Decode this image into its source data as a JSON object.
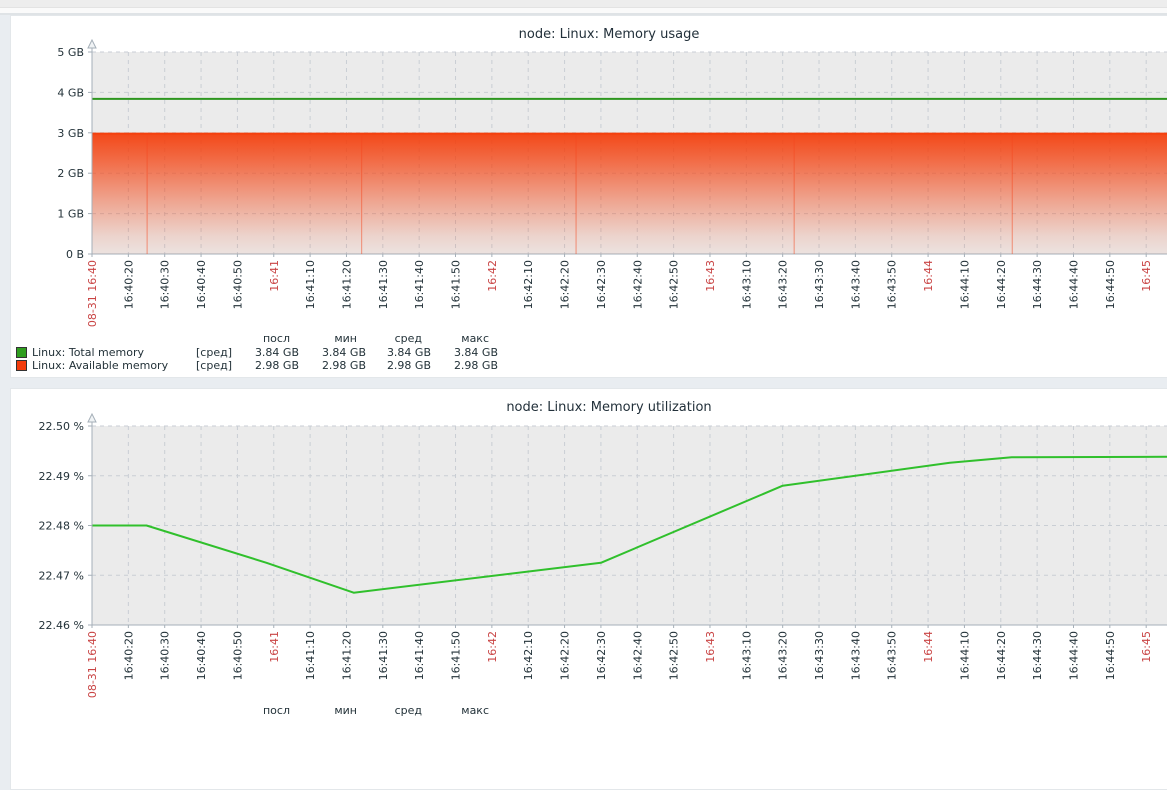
{
  "page": {
    "topbar_color": "#ededed",
    "secondbar_color": "#fafafa",
    "divider_color": "#dfe3e6",
    "background": "#e9edf1",
    "card_background": "#ffffff",
    "plot_background": "#ebebeb",
    "grid_color": "#c9ced4",
    "axis_color": "#a5afb8",
    "label_color": "#233239",
    "red_label_color": "#c94444"
  },
  "time_axis": {
    "span_s": 296,
    "ticks": [
      {
        "s": 0,
        "label": "08-31 16:40",
        "red": true
      },
      {
        "s": 10,
        "label": "16:40:20",
        "red": false
      },
      {
        "s": 20,
        "label": "16:40:30",
        "red": false
      },
      {
        "s": 30,
        "label": "16:40:40",
        "red": false
      },
      {
        "s": 40,
        "label": "16:40:50",
        "red": false
      },
      {
        "s": 50,
        "label": "16:41",
        "red": true
      },
      {
        "s": 60,
        "label": "16:41:10",
        "red": false
      },
      {
        "s": 70,
        "label": "16:41:20",
        "red": false
      },
      {
        "s": 80,
        "label": "16:41:30",
        "red": false
      },
      {
        "s": 90,
        "label": "16:41:40",
        "red": false
      },
      {
        "s": 100,
        "label": "16:41:50",
        "red": false
      },
      {
        "s": 110,
        "label": "16:42",
        "red": true
      },
      {
        "s": 120,
        "label": "16:42:10",
        "red": false
      },
      {
        "s": 130,
        "label": "16:42:20",
        "red": false
      },
      {
        "s": 140,
        "label": "16:42:30",
        "red": false
      },
      {
        "s": 150,
        "label": "16:42:40",
        "red": false
      },
      {
        "s": 160,
        "label": "16:42:50",
        "red": false
      },
      {
        "s": 170,
        "label": "16:43",
        "red": true
      },
      {
        "s": 180,
        "label": "16:43:10",
        "red": false
      },
      {
        "s": 190,
        "label": "16:43:20",
        "red": false
      },
      {
        "s": 200,
        "label": "16:43:30",
        "red": false
      },
      {
        "s": 210,
        "label": "16:43:40",
        "red": false
      },
      {
        "s": 220,
        "label": "16:43:50",
        "red": false
      },
      {
        "s": 230,
        "label": "16:44",
        "red": true
      },
      {
        "s": 240,
        "label": "16:44:10",
        "red": false
      },
      {
        "s": 250,
        "label": "16:44:20",
        "red": false
      },
      {
        "s": 260,
        "label": "16:44:30",
        "red": false
      },
      {
        "s": 270,
        "label": "16:44:40",
        "red": false
      },
      {
        "s": 280,
        "label": "16:44:50",
        "red": false
      },
      {
        "s": 290,
        "label": "16:45",
        "red": true
      }
    ]
  },
  "chart_data": [
    {
      "type": "line+area",
      "title": "node: Linux: Memory usage",
      "ylim": [
        0,
        5
      ],
      "y_ticks": [
        {
          "v": 5,
          "label": "5 GB"
        },
        {
          "v": 4,
          "label": "4 GB"
        },
        {
          "v": 3,
          "label": "3 GB"
        },
        {
          "v": 2,
          "label": "2 GB"
        },
        {
          "v": 1,
          "label": "1 GB"
        },
        {
          "v": 0,
          "label": "0 B"
        }
      ],
      "series": [
        {
          "name": "Linux: Total memory",
          "style": "line",
          "color": "#2d961e",
          "points": [
            [
              0,
              3.84
            ],
            [
              296,
              3.84
            ]
          ]
        },
        {
          "name": "Linux: Available memory",
          "style": "gradient-area",
          "color": "#f4400e",
          "points": [
            [
              0,
              2.98
            ],
            [
              296,
              2.98
            ]
          ],
          "seams_s": [
            15,
            74,
            133,
            193,
            253
          ]
        }
      ],
      "legend": {
        "headers": [
          "посл",
          "мин",
          "сред",
          "макс"
        ],
        "rows": [
          {
            "swatch": "#2f9e1f",
            "name": "Linux: Total memory",
            "func": "[сред]",
            "values": [
              "3.84 GB",
              "3.84 GB",
              "3.84 GB",
              "3.84 GB"
            ]
          },
          {
            "swatch": "#f43c0c",
            "name": "Linux: Available memory",
            "func": "[сред]",
            "values": [
              "2.98 GB",
              "2.98 GB",
              "2.98 GB",
              "2.98 GB"
            ]
          }
        ]
      }
    },
    {
      "type": "line",
      "title": "node: Linux: Memory utilization",
      "ylim": [
        22.46,
        22.5
      ],
      "y_ticks": [
        {
          "v": 22.5,
          "label": "22.50 %"
        },
        {
          "v": 22.49,
          "label": "22.49 %"
        },
        {
          "v": 22.48,
          "label": "22.48 %"
        },
        {
          "v": 22.47,
          "label": "22.47 %"
        },
        {
          "v": 22.46,
          "label": "22.46 %"
        }
      ],
      "series": [
        {
          "name": "Linux: Memory utilization",
          "style": "line",
          "color": "#30c02c",
          "points": [
            [
              0,
              22.48
            ],
            [
              15,
              22.48
            ],
            [
              48,
              22.4725
            ],
            [
              72,
              22.4665
            ],
            [
              140,
              22.4725
            ],
            [
              190,
              22.488
            ],
            [
              236,
              22.4926
            ],
            [
              253,
              22.4937
            ],
            [
              296,
              22.4938
            ]
          ]
        }
      ],
      "legend": {
        "headers": [
          "посл",
          "мин",
          "сред",
          "макс"
        ],
        "rows": []
      }
    }
  ]
}
